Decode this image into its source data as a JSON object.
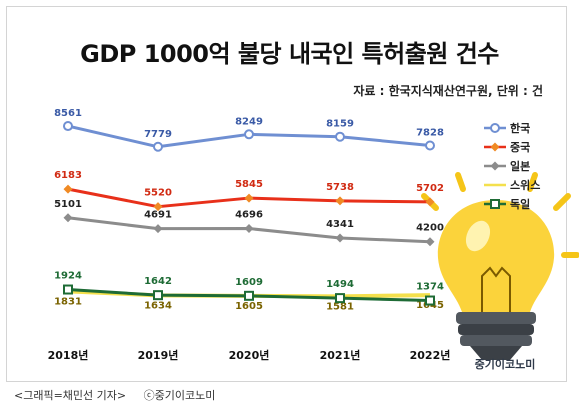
{
  "chart_data": {
    "type": "line",
    "title": "GDP 1000억 불당 내국인 특허출원 건수",
    "source": "자료 : 한국지식재산연구원, 단위 : 건",
    "categories": [
      "2018년",
      "2019년",
      "2020년",
      "2021년",
      "2022년"
    ],
    "series": [
      {
        "name": "한국",
        "color": "#6f8fd2",
        "marker": "circle",
        "values": [
          8561,
          7779,
          8249,
          8159,
          7828
        ]
      },
      {
        "name": "중국",
        "color": "#e8301a",
        "marker": "diamond",
        "values": [
          6183,
          5520,
          5845,
          5738,
          5702
        ]
      },
      {
        "name": "일본",
        "color": "#8c8c8c",
        "marker": "diamond",
        "values": [
          5101,
          4691,
          4696,
          4341,
          4200
        ]
      },
      {
        "name": "스위스",
        "color": "#f4e04d",
        "marker": "dash",
        "values": [
          1831,
          1634,
          1605,
          1581,
          1645
        ]
      },
      {
        "name": "독일",
        "color": "#1e6b35",
        "marker": "square",
        "values": [
          1924,
          1642,
          1609,
          1494,
          1374
        ]
      }
    ],
    "legend_position": "right"
  },
  "caption": {
    "credit": "<그래픽=채민선 기자>",
    "copyright": "ⓒ중기이코노미"
  },
  "logo_text": "중기이코노미"
}
